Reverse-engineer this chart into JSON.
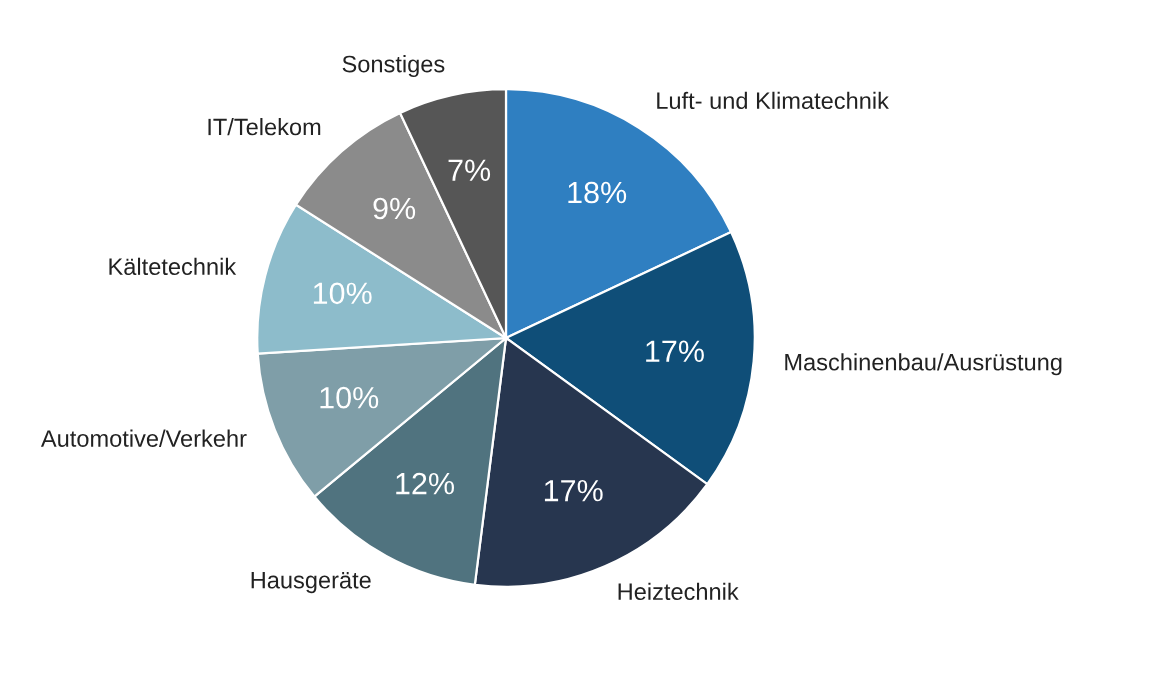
{
  "chart_data": {
    "type": "pie",
    "categories": [
      "Luft- und Klimatechnik",
      "Maschinenbau/Ausrüstung",
      "Heiztechnik",
      "Hausgeräte",
      "Automotive/Verkehr",
      "Kältetechnik",
      "IT/Telekom",
      "Sonstiges"
    ],
    "values": [
      18,
      17,
      17,
      12,
      10,
      10,
      9,
      7
    ],
    "value_labels": [
      "18%",
      "17%",
      "17%",
      "12%",
      "10%",
      "10%",
      "9%",
      "7%"
    ],
    "colors": [
      "#2f7fc1",
      "#0f4e78",
      "#27364f",
      "#50737f",
      "#7f9ea8",
      "#8dbccb",
      "#8b8b8b",
      "#565656"
    ],
    "legend": false
  }
}
